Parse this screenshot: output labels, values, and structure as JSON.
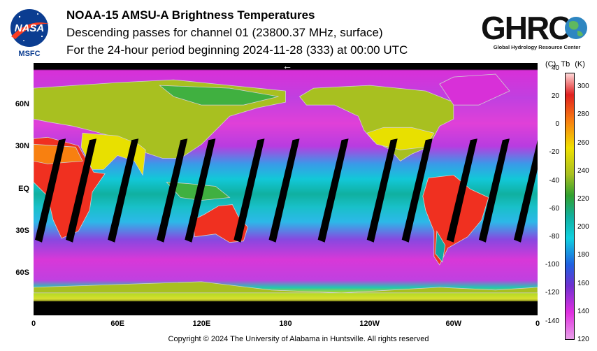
{
  "header": {
    "title": "NOAA-15 AMSU-A Brightness Temperatures",
    "subtitle": "Descending passes for channel 01 (23800.37 MHz, surface)",
    "period": "For the 24-hour period beginning 2024-11-28 (333) at 00:00 UTC"
  },
  "logos": {
    "nasa": {
      "text": "NASA",
      "caption": "MSFC"
    },
    "ghrc": {
      "text": "GHRC",
      "caption": "Global Hydrology Resource Center"
    }
  },
  "map": {
    "projection": "equirectangular",
    "lat_range": [
      -90,
      90
    ],
    "lon_range": [
      0,
      360
    ],
    "lat_labels": [
      "60N",
      "30N",
      "EQ",
      "30S",
      "60S"
    ],
    "lon_labels": [
      "0",
      "60E",
      "120E",
      "180",
      "120W",
      "60W",
      "0"
    ],
    "arrow_glyph": "←",
    "palette": {
      "cold": "#d830d8",
      "cool": "#9b3ddc",
      "cyan": "#10c8e0",
      "teal": "#10a8a0",
      "green": "#40b040",
      "yellowgreen": "#a8c020",
      "yellow": "#e8e000",
      "orange": "#f88010",
      "red": "#f03020",
      "gap": "#000000",
      "coast": "#d0d0d0"
    }
  },
  "colorbar": {
    "header_c": "(C)",
    "header_tb": "Tb",
    "header_k": "(K)",
    "celsius_ticks": [
      "40",
      "20",
      "0",
      "-20",
      "-40",
      "-60",
      "-80",
      "-100",
      "-120",
      "-140"
    ],
    "kelvin_ticks": [
      "300",
      "280",
      "260",
      "240",
      "220",
      "200",
      "180",
      "160",
      "140",
      "120"
    ],
    "range_k": [
      120,
      310
    ]
  },
  "footer": {
    "copyright": "Copyright © 2024 The University of Alabama in Huntsville.  All rights reserved"
  }
}
